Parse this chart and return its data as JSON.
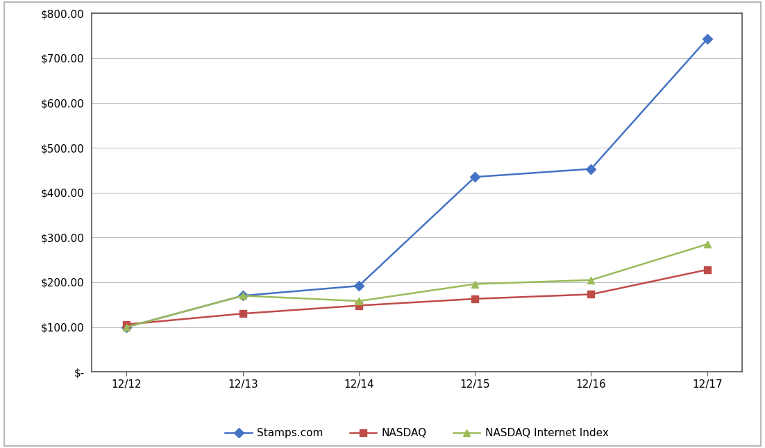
{
  "x_labels": [
    "12/12",
    "12/13",
    "12/14",
    "12/15",
    "12/16",
    "12/17"
  ],
  "stamps": [
    100.0,
    170.0,
    192.0,
    435.0,
    453.0,
    743.0
  ],
  "nasdaq": [
    106.0,
    130.0,
    148.0,
    163.0,
    173.0,
    228.0
  ],
  "nasdaq_internet": [
    100.0,
    170.0,
    158.0,
    196.0,
    205.0,
    285.0
  ],
  "stamps_color": "#4472C4",
  "nasdaq_color": "#BE4B48",
  "nasdaq_internet_color": "#9BBB59",
  "plot_bg": "#FFFFFF",
  "outer_bg": "#FFFFFF",
  "fig_border_color": "#AAAAAA",
  "grid_color": "#C0C0C0",
  "ylim": [
    0,
    800
  ],
  "yticks": [
    0,
    100,
    200,
    300,
    400,
    500,
    600,
    700,
    800
  ],
  "ytick_labels": [
    "$-",
    "$100.00",
    "$200.00",
    "$300.00",
    "$400.00",
    "$500.00",
    "$600.00",
    "$700.00",
    "$800.00"
  ],
  "stamps_label": "Stamps.com",
  "nasdaq_label": "NASDAQ",
  "nasdaq_internet_label": "NASDAQ Internet Index",
  "marker_stamps": "D",
  "marker_nasdaq": "s",
  "marker_nasdaq_internet": "^",
  "linewidth": 1.8,
  "markersize": 7,
  "tick_fontsize": 11,
  "legend_fontsize": 11
}
